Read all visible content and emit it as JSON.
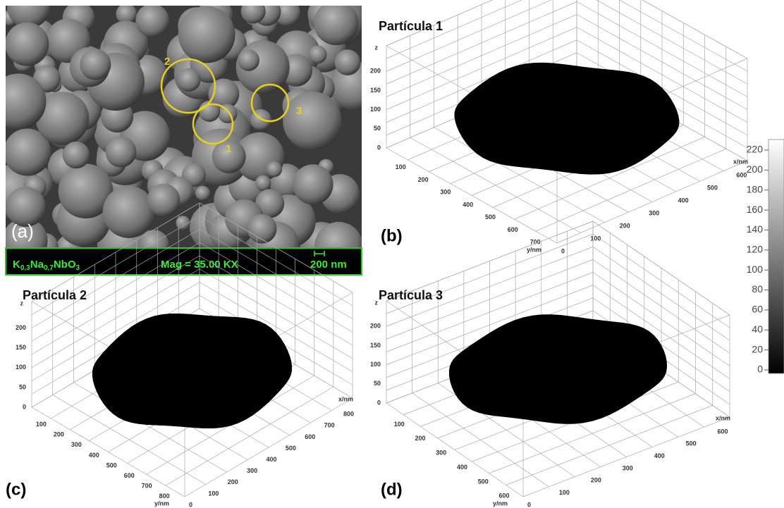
{
  "panel_a": {
    "label": "(a)",
    "markers": [
      "1",
      "2",
      "3"
    ],
    "caption": {
      "formula": [
        "K",
        "0,3",
        "Na",
        "0,7",
        "NbO",
        "3"
      ],
      "magnification": "Mag = 35.00 KX",
      "scale_bar": "200 nm"
    }
  },
  "panels": [
    {
      "title": "Partícula 1",
      "label": "(b)",
      "z_label": "z",
      "z_ticks": [
        0,
        50,
        100,
        150,
        200
      ],
      "y_label": "y/nm",
      "y_ticks": [
        100,
        200,
        300,
        400,
        500,
        600,
        700
      ],
      "x_label": "x/nm",
      "x_ticks": [
        0,
        100,
        200,
        300,
        400,
        500,
        600
      ]
    },
    {
      "title": "Partícula 2",
      "label": "(c)",
      "z_label": "z",
      "z_ticks": [
        0,
        50,
        100,
        150,
        200
      ],
      "y_label": "y/nm",
      "y_ticks": [
        100,
        200,
        300,
        400,
        500,
        600,
        700,
        800
      ],
      "x_label": "x/nm",
      "x_ticks": [
        0,
        100,
        200,
        300,
        400,
        500,
        600,
        700,
        800
      ]
    },
    {
      "title": "Partícula 3",
      "label": "(d)",
      "z_label": "z",
      "z_ticks": [
        0,
        50,
        100,
        150,
        200
      ],
      "y_label": "y/nm",
      "y_ticks": [
        100,
        200,
        300,
        400,
        500,
        600
      ],
      "x_label": "x/nm",
      "x_ticks": [
        0,
        100,
        200,
        300,
        400,
        500,
        600
      ]
    }
  ],
  "colorbar": {
    "ticks": [
      0,
      20,
      40,
      60,
      80,
      100,
      120,
      140,
      160,
      180,
      200,
      220
    ]
  }
}
